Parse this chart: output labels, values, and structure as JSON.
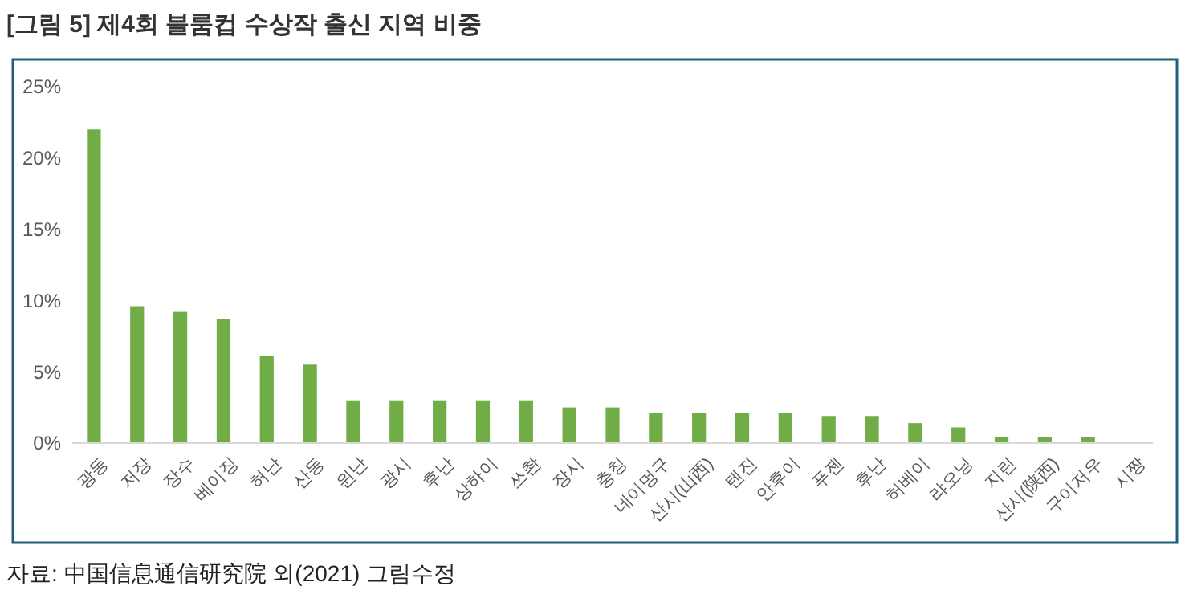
{
  "chart_data": {
    "type": "bar",
    "title": "[그림 5] 제4회 블룸컵 수상작 출신 지역 비중",
    "categories": [
      "광동",
      "저장",
      "장수",
      "베이징",
      "허난",
      "산동",
      "윈난",
      "광시",
      "후난",
      "상하이",
      "쓰촨",
      "장시",
      "충칭",
      "네이멍구",
      "산시(山西)",
      "텐진",
      "안후이",
      "푸젠",
      "후난",
      "허베이",
      "랴오닝",
      "지린",
      "산시(陕西)",
      "구이저우",
      "시짱"
    ],
    "values": [
      22,
      9.6,
      9.2,
      8.7,
      6.1,
      5.5,
      3,
      3,
      3,
      3,
      3,
      2.5,
      2.5,
      2.1,
      2.1,
      2.1,
      2.1,
      1.9,
      1.9,
      1.4,
      1.1,
      0.4,
      0.4,
      0.4,
      0
    ],
    "color": "#70ad47",
    "ylim": [
      0,
      25
    ],
    "yticks": [
      {
        "value": 0,
        "label": "0%"
      },
      {
        "value": 5,
        "label": "5%"
      },
      {
        "value": 10,
        "label": "10%"
      },
      {
        "value": 15,
        "label": "15%"
      },
      {
        "value": 20,
        "label": "20%"
      },
      {
        "value": 25,
        "label": "25%"
      }
    ],
    "grid": false,
    "annotations": [
      "자료: 中国信息通信研究院 외(2021) 그림수정"
    ]
  }
}
